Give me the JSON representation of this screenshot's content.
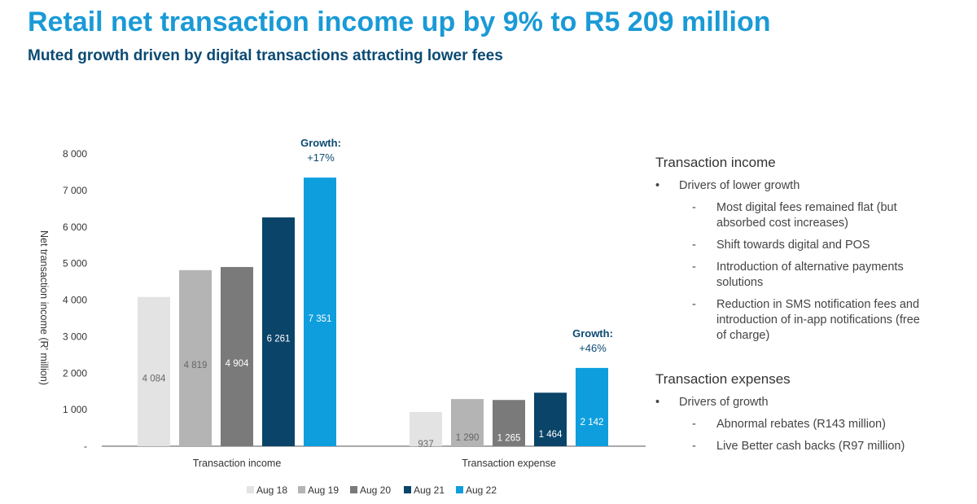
{
  "title": "Retail net transaction income up by 9% to R5 209 million",
  "subtitle": "Muted growth driven by digital transactions attracting lower fees",
  "chart_data": {
    "type": "bar",
    "ylabel": "Net transaction income (R' million)",
    "ylim": [
      0,
      8000
    ],
    "yticks": [
      "-",
      "1 000",
      "2 000",
      "3 000",
      "4 000",
      "5 000",
      "6 000",
      "7 000",
      "8 000"
    ],
    "grid": false,
    "legend_position": "bottom",
    "categories": [
      "Transaction income",
      "Transaction expense"
    ],
    "series": [
      {
        "name": "Aug 18",
        "color": "#e3e3e3",
        "values": [
          4084,
          937
        ],
        "labels": [
          "4 084",
          "937"
        ]
      },
      {
        "name": "Aug 19",
        "color": "#b4b4b4",
        "values": [
          4819,
          1290
        ],
        "labels": [
          "4 819",
          "1 290"
        ]
      },
      {
        "name": "Aug 20",
        "color": "#7a7a7a",
        "values": [
          4904,
          1265
        ],
        "labels": [
          "4 904",
          "1 265"
        ]
      },
      {
        "name": "Aug 21",
        "color": "#0a4468",
        "values": [
          6261,
          1464
        ],
        "labels": [
          "6 261",
          "1 464"
        ]
      },
      {
        "name": "Aug 22",
        "color": "#0e9ede",
        "values": [
          7351,
          2142
        ],
        "labels": [
          "7 351",
          "2 142"
        ]
      }
    ],
    "annotations": [
      {
        "category": "Transaction income",
        "label": "Growth:",
        "value": "+17%"
      },
      {
        "category": "Transaction expense",
        "label": "Growth:",
        "value": "+46%"
      }
    ]
  },
  "panel": {
    "income": {
      "heading": "Transaction income",
      "bullet": "Drivers of lower growth",
      "items": [
        "Most digital fees remained flat (but absorbed cost increases)",
        "Shift towards digital and POS",
        "Introduction of alternative payments solutions",
        "Reduction in SMS notification fees and introduction of in-app notifications (free of charge)"
      ]
    },
    "expenses": {
      "heading": "Transaction expenses",
      "bullet": "Drivers of growth",
      "items": [
        "Abnormal rebates (R143 million)",
        "Live Better cash backs (R97 million)"
      ]
    }
  }
}
